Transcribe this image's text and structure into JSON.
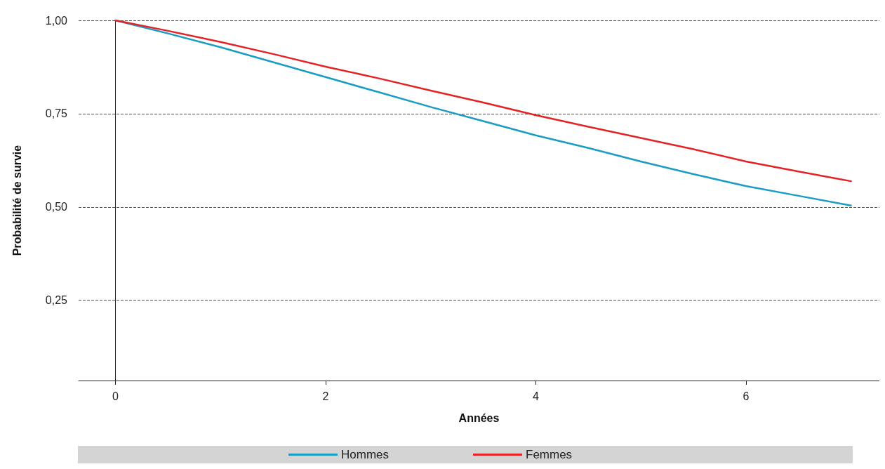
{
  "chart_data": {
    "type": "line",
    "xlabel": "Années",
    "ylabel": "Probabilité de survie",
    "xlim": [
      -0.35,
      7.27
    ],
    "xticks": [
      0,
      2,
      4,
      6
    ],
    "ylim": [
      0.035,
      1.0
    ],
    "yticks": [
      {
        "value": 0.25,
        "label": "0,25"
      },
      {
        "value": 0.5,
        "label": "0,50"
      },
      {
        "value": 0.75,
        "label": "0,75"
      },
      {
        "value": 1.0,
        "label": "1,00"
      }
    ],
    "grid": "y",
    "legend": "bottom",
    "marker": "none",
    "line_style": "solid",
    "x": [
      0,
      0.5,
      1,
      1.5,
      2,
      2.5,
      3,
      3.5,
      4,
      4.5,
      5,
      5.5,
      6,
      6.5,
      7
    ],
    "series": [
      {
        "name": "Hommes",
        "color": "#1a9cc4",
        "values": [
          1.0,
          0.965,
          0.928,
          0.888,
          0.848,
          0.808,
          0.768,
          0.73,
          0.692,
          0.658,
          0.622,
          0.588,
          0.556,
          0.53,
          0.504
        ]
      },
      {
        "name": "Femmes",
        "color": "#e32326",
        "values": [
          1.0,
          0.972,
          0.942,
          0.91,
          0.876,
          0.845,
          0.812,
          0.78,
          0.746,
          0.715,
          0.685,
          0.655,
          0.622,
          0.595,
          0.569
        ]
      }
    ]
  }
}
